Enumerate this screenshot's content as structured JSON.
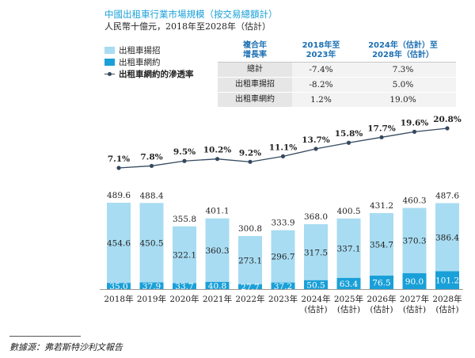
{
  "header": {
    "title": "中國出租車行業市場規模（按交易總額計）",
    "subtitle": "人民幣十億元，2018年至2028年（估計）"
  },
  "legend": {
    "items": [
      {
        "label": "出租車揚招",
        "color": "#a8dcf2"
      },
      {
        "label": "出租車網約",
        "color": "#1aa0d8"
      },
      {
        "label": "出租車網約的滲透率",
        "color": "#34495e"
      }
    ]
  },
  "cagr_table": {
    "header": [
      "複合年\n增長率",
      "2018年至\n2023年",
      "2024年（估計）至\n2028年（估計）"
    ],
    "rows": [
      {
        "label": "總計",
        "v1": "-7.4%",
        "v2": "7.3%"
      },
      {
        "label": "出租車揚招",
        "v1": "-8.2%",
        "v2": "5.0%"
      },
      {
        "label": "出租車網約",
        "v1": "1.2%",
        "v2": "19.0%"
      }
    ]
  },
  "chart_data": {
    "type": "bar",
    "stacked": true,
    "categories": [
      "2018年",
      "2019年",
      "2020年",
      "2021年",
      "2022年",
      "2023年",
      "2024年\n(估計)",
      "2025年\n(估計)",
      "2026年\n(估計)",
      "2027年\n(估計)",
      "2028年\n(估計)"
    ],
    "series": [
      {
        "name": "出租車網約",
        "values": [
          35.0,
          37.9,
          33.7,
          40.8,
          27.7,
          37.2,
          50.5,
          63.4,
          76.5,
          90.0,
          101.2
        ],
        "labels": [
          "35.0",
          "37.9",
          "33.7",
          "40.8",
          "27.7",
          "37.2",
          "50.5",
          "63.4",
          "76.5",
          "90.0",
          "101.2"
        ],
        "color": "#1aa0d8"
      },
      {
        "name": "出租車揚招",
        "values": [
          454.6,
          450.5,
          322.1,
          360.3,
          273.1,
          296.7,
          317.5,
          337.1,
          354.7,
          370.3,
          386.4
        ],
        "labels": [
          "454.6",
          "450.5",
          "322.1",
          "360.3",
          "273.1",
          "296.7",
          "317.5",
          "337.1",
          "354.7",
          "370.3",
          "386.4"
        ],
        "color": "#a8dcf2"
      }
    ],
    "totals": [
      489.6,
      488.4,
      355.8,
      401.1,
      300.8,
      333.9,
      368.0,
      400.5,
      431.2,
      460.3,
      487.6
    ],
    "total_labels": [
      "489.6",
      "488.4",
      "355.8",
      "401.1",
      "300.8",
      "333.9",
      "368.0",
      "400.5",
      "431.2",
      "460.3",
      "487.6"
    ],
    "line": {
      "name": "出租車網約的滲透率",
      "values": [
        7.1,
        7.8,
        9.5,
        10.2,
        9.2,
        11.1,
        13.7,
        15.8,
        17.7,
        19.6,
        20.8
      ],
      "labels": [
        "7.1%",
        "7.8%",
        "9.5%",
        "10.2%",
        "9.2%",
        "11.1%",
        "13.7%",
        "15.8%",
        "17.7%",
        "19.6%",
        "20.8%"
      ],
      "color": "#34495e"
    },
    "ylim": [
      0,
      489.6
    ]
  },
  "source": "數據源：弗若斯特沙利文報告"
}
